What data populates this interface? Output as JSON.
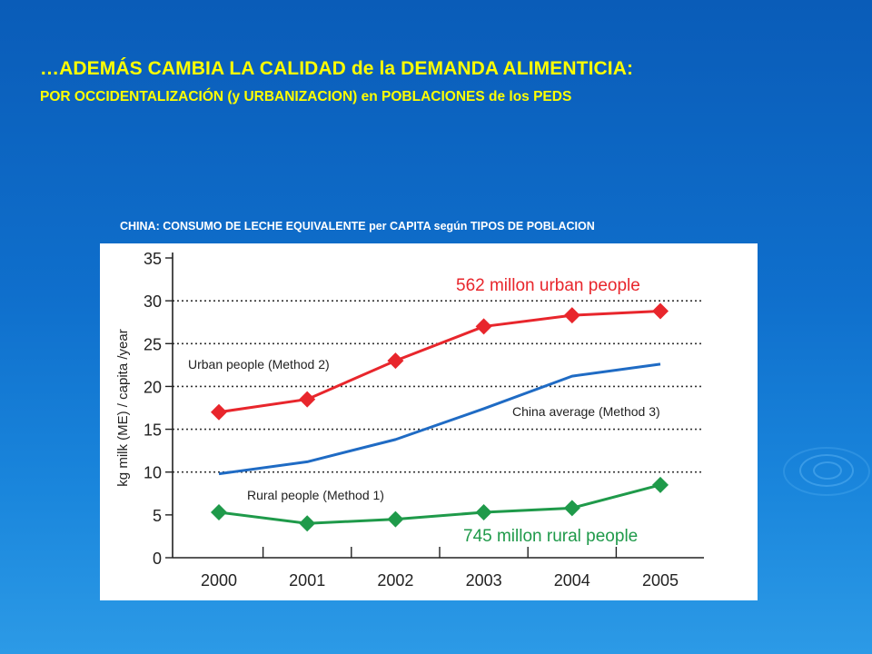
{
  "slide": {
    "title": "…ADEMÁS CAMBIA LA CALIDAD de la DEMANDA ALIMENTICIA:",
    "subtitle": "POR OCCIDENTALIZACIÓN  (y URBANIZACION)  en POBLACIONES  de los  PEDS",
    "chart_caption": "CHINA: CONSUMO DE LECHE EQUIVALENTE  per CAPITA  según TIPOS DE POBLACION"
  },
  "colors": {
    "background": "#0f6fcc",
    "title": "#ffff00",
    "urban": "#e8262c",
    "average": "#1f6bc4",
    "rural": "#1f9a4a",
    "grid": "#333333"
  },
  "chart_data": {
    "type": "line",
    "title": "",
    "xlabel": "",
    "ylabel": "kg milk (ME) / capita /year",
    "categories": [
      "2000",
      "2001",
      "2002",
      "2003",
      "2004",
      "2005"
    ],
    "yticks": [
      "0",
      "5",
      "10",
      "15",
      "20",
      "25",
      "30",
      "35"
    ],
    "ylim": [
      0,
      35
    ],
    "grid": "horizontal dotted lines at 10, 15, 20, 25, 30",
    "series": [
      {
        "name": "Urban people (Method 2)",
        "key": "urban",
        "marker": "diamond",
        "values": [
          17.0,
          18.5,
          23.0,
          27.0,
          28.3,
          28.8
        ]
      },
      {
        "name": "China average (Method 3)",
        "key": "average",
        "marker": "none",
        "values": [
          9.8,
          11.2,
          13.8,
          17.4,
          21.2,
          22.6
        ]
      },
      {
        "name": "Rural people (Method 1)",
        "key": "rural",
        "marker": "diamond",
        "values": [
          5.3,
          4.0,
          4.5,
          5.3,
          5.8,
          8.5
        ]
      }
    ],
    "annotations": {
      "urban_population": "562 millon urban people",
      "rural_population": "745 millon rural people"
    }
  }
}
